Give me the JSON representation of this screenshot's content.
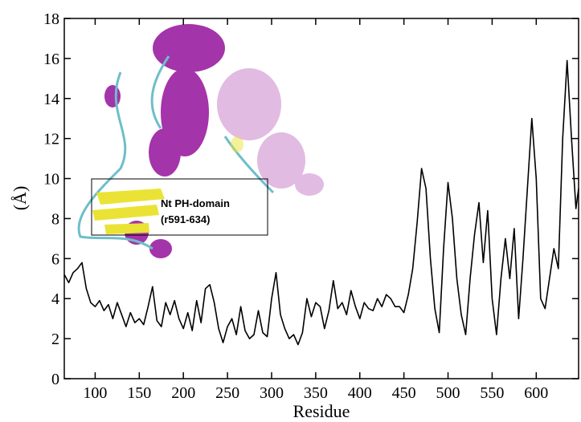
{
  "chart_data": {
    "type": "line",
    "xlabel": "Residue",
    "ylabel": "(Å)",
    "annotation": [
      "Nt PH-domain",
      "(r591-634)"
    ],
    "color": "#000000",
    "x": [
      65,
      70,
      75,
      80,
      85,
      90,
      95,
      100,
      105,
      110,
      115,
      120,
      125,
      130,
      135,
      140,
      145,
      150,
      155,
      160,
      165,
      170,
      175,
      180,
      185,
      190,
      195,
      200,
      205,
      210,
      215,
      220,
      225,
      230,
      235,
      240,
      245,
      250,
      255,
      260,
      265,
      270,
      275,
      280,
      285,
      290,
      295,
      300,
      305,
      310,
      315,
      320,
      325,
      330,
      335,
      340,
      345,
      350,
      355,
      360,
      365,
      370,
      375,
      380,
      385,
      390,
      395,
      400,
      405,
      410,
      415,
      420,
      425,
      430,
      435,
      440,
      445,
      450,
      455,
      460,
      465,
      470,
      475,
      480,
      485,
      490,
      495,
      500,
      505,
      510,
      515,
      520,
      525,
      530,
      535,
      540,
      545,
      550,
      555,
      560,
      565,
      570,
      575,
      580,
      585,
      590,
      595,
      600,
      605,
      610,
      615,
      620,
      625,
      630,
      635,
      640,
      645,
      648
    ],
    "values": [
      5.2,
      4.8,
      5.3,
      5.5,
      5.8,
      4.5,
      3.8,
      3.6,
      3.9,
      3.4,
      3.7,
      3.0,
      3.8,
      3.2,
      2.6,
      3.3,
      2.8,
      3.0,
      2.7,
      3.6,
      4.6,
      2.9,
      2.6,
      3.8,
      3.2,
      3.9,
      3.0,
      2.5,
      3.3,
      2.4,
      3.9,
      2.8,
      4.5,
      4.7,
      3.8,
      2.5,
      1.8,
      2.6,
      3.0,
      2.2,
      3.6,
      2.4,
      2.0,
      2.2,
      3.4,
      2.3,
      2.1,
      4.0,
      5.3,
      3.2,
      2.5,
      2.0,
      2.2,
      1.7,
      2.3,
      4.0,
      3.1,
      3.8,
      3.6,
      2.5,
      3.4,
      4.9,
      3.5,
      3.8,
      3.2,
      4.4,
      3.6,
      3.0,
      3.8,
      3.5,
      3.4,
      4.0,
      3.6,
      4.2,
      4.0,
      3.6,
      3.6,
      3.3,
      4.2,
      5.5,
      7.8,
      10.5,
      9.5,
      6.0,
      3.5,
      2.3,
      6.5,
      9.8,
      8.0,
      5.0,
      3.2,
      2.2,
      5.0,
      7.2,
      8.8,
      5.8,
      8.4,
      4.0,
      2.2,
      5.0,
      7.0,
      5.0,
      7.5,
      3.0,
      6.0,
      9.5,
      13.0,
      10.0,
      4.0,
      3.5,
      5.0,
      6.5,
      5.5,
      12.0,
      15.9,
      12.0,
      8.5,
      9.5
    ],
    "xlim": [
      65,
      648
    ],
    "ylim": [
      0,
      18
    ],
    "xticks": [
      100,
      150,
      200,
      250,
      300,
      350,
      400,
      450,
      500,
      550,
      600
    ],
    "yticks": [
      0,
      2,
      4,
      6,
      8,
      10,
      12,
      14,
      16,
      18
    ]
  }
}
